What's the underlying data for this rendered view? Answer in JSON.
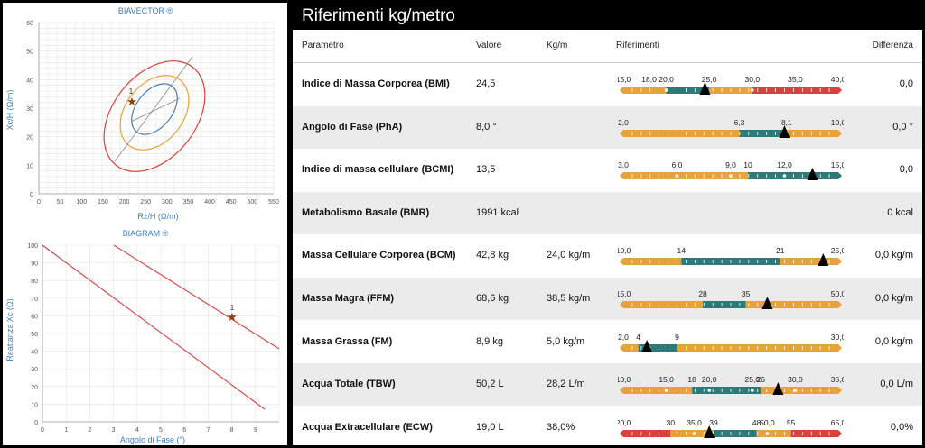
{
  "biavector": {
    "title": "BIAVECTOR ®",
    "xlabel": "Rz/H (Ω/m)",
    "ylabel": "Xc/H (Ω/m)",
    "xticks": [
      "0",
      "50",
      "100",
      "150",
      "200",
      "250",
      "300",
      "350",
      "400",
      "450",
      "500",
      "550"
    ],
    "yticks": [
      "0",
      "10",
      "20",
      "30",
      "40",
      "50",
      "60"
    ],
    "point_label": "1"
  },
  "biagram": {
    "title": "BIAGRAM ®",
    "xlabel": "Angolo di Fase (°)",
    "ylabel": "Reattanza Xc (Ω)",
    "xticks": [
      "0",
      "1",
      "2",
      "3",
      "4",
      "5",
      "6",
      "7",
      "8",
      "9"
    ],
    "yticks": [
      "0",
      "10",
      "20",
      "30",
      "40",
      "50",
      "60",
      "70",
      "80",
      "90",
      "100"
    ],
    "point_label": "1"
  },
  "panel": {
    "title": "Riferimenti kg/metro",
    "headers": {
      "param": "Parametro",
      "value": "Valore",
      "kgm": "Kg/m",
      "ref": "Riferimenti",
      "diff": "Differenza"
    }
  },
  "colors": {
    "orange": "#e8a23a",
    "teal": "#2e7a78",
    "red": "#d9413a",
    "marker": "#000000"
  },
  "rows": [
    {
      "name": "Indice di Massa Corporea (BMI)",
      "value": "24,5",
      "kgm": "",
      "diff": "0,0",
      "labels": [
        {
          "t": "15,0",
          "p": 0
        },
        {
          "t": "18,0",
          "p": 0.12
        },
        {
          "t": "20,0",
          "p": 0.2
        },
        {
          "t": "25,0",
          "p": 0.4
        },
        {
          "t": "30,0",
          "p": 0.6
        },
        {
          "t": "35,0",
          "p": 0.8
        },
        {
          "t": "40,0",
          "p": 1
        }
      ],
      "segments": [
        {
          "c": "orange",
          "a": 0,
          "b": 0.12
        },
        {
          "c": "orange",
          "a": 0.12,
          "b": 0.2
        },
        {
          "c": "teal",
          "a": 0.2,
          "b": 0.4
        },
        {
          "c": "orange",
          "a": 0.4,
          "b": 0.6
        },
        {
          "c": "red",
          "a": 0.6,
          "b": 1
        }
      ],
      "marker": 0.38,
      "dots": [
        0.2,
        0.6
      ]
    },
    {
      "name": "Angolo di Fase (PhA)",
      "value": "8,0  °",
      "kgm": "",
      "diff": "0,0  °",
      "labels": [
        {
          "t": "2,0",
          "p": 0
        },
        {
          "t": "6,3",
          "p": 0.54
        },
        {
          "t": "8,1",
          "p": 0.76
        },
        {
          "t": "10,0",
          "p": 1
        }
      ],
      "segments": [
        {
          "c": "orange",
          "a": 0,
          "b": 0.54
        },
        {
          "c": "teal",
          "a": 0.54,
          "b": 0.76
        },
        {
          "c": "orange",
          "a": 0.76,
          "b": 1
        }
      ],
      "marker": 0.75,
      "dots": []
    },
    {
      "name": "Indice di massa cellulare (BCMI)",
      "value": "13,5",
      "kgm": "",
      "diff": "0,0",
      "labels": [
        {
          "t": "3,0",
          "p": 0
        },
        {
          "t": "6,0",
          "p": 0.25
        },
        {
          "t": "9,0",
          "p": 0.5
        },
        {
          "t": "10",
          "p": 0.58
        },
        {
          "t": "12,0",
          "p": 0.75
        },
        {
          "t": "15,0",
          "p": 1
        }
      ],
      "segments": [
        {
          "c": "orange",
          "a": 0,
          "b": 0.58
        },
        {
          "c": "teal",
          "a": 0.58,
          "b": 1
        }
      ],
      "marker": 0.88,
      "dots": [
        0.25,
        0.5,
        0.75
      ]
    },
    {
      "name": "Metabolismo Basale (BMR)",
      "value": "1991 kcal",
      "kgm": "",
      "diff": "0 kcal",
      "labels": [],
      "segments": [],
      "marker": null,
      "dots": []
    },
    {
      "name": "Massa Cellulare Corporea (BCM)",
      "value": "42,8 kg",
      "kgm": "24,0 kg/m",
      "diff": "0,0 kg/m",
      "labels": [
        {
          "t": "10,0",
          "p": 0
        },
        {
          "t": "14",
          "p": 0.27
        },
        {
          "t": "21",
          "p": 0.73
        },
        {
          "t": "25,0",
          "p": 1
        }
      ],
      "segments": [
        {
          "c": "orange",
          "a": 0,
          "b": 0.27
        },
        {
          "c": "teal",
          "a": 0.27,
          "b": 0.73
        },
        {
          "c": "orange",
          "a": 0.73,
          "b": 1
        }
      ],
      "marker": 0.93,
      "dots": []
    },
    {
      "name": "Massa Magra (FFM)",
      "value": "68,6 kg",
      "kgm": "38,5 kg/m",
      "diff": "0,0 kg/m",
      "labels": [
        {
          "t": "15,0",
          "p": 0
        },
        {
          "t": "28",
          "p": 0.37
        },
        {
          "t": "35",
          "p": 0.57
        },
        {
          "t": "50,0",
          "p": 1
        }
      ],
      "segments": [
        {
          "c": "orange",
          "a": 0,
          "b": 0.37
        },
        {
          "c": "teal",
          "a": 0.37,
          "b": 0.57
        },
        {
          "c": "orange",
          "a": 0.57,
          "b": 1
        }
      ],
      "marker": 0.67,
      "dots": []
    },
    {
      "name": "Massa Grassa (FM)",
      "value": "8,9 kg",
      "kgm": "5,0 kg/m",
      "diff": "0,0 kg/m",
      "labels": [
        {
          "t": "2,0",
          "p": 0
        },
        {
          "t": "4",
          "p": 0.07
        },
        {
          "t": "9",
          "p": 0.25
        },
        {
          "t": "30,0",
          "p": 1
        }
      ],
      "segments": [
        {
          "c": "orange",
          "a": 0,
          "b": 0.07
        },
        {
          "c": "teal",
          "a": 0.07,
          "b": 0.25
        },
        {
          "c": "orange",
          "a": 0.25,
          "b": 1
        }
      ],
      "marker": 0.11,
      "dots": []
    },
    {
      "name": "Acqua Totale (TBW)",
      "value": "50,2 L",
      "kgm": "28,2 L/m",
      "diff": "0,0 L/m",
      "labels": [
        {
          "t": "10,0",
          "p": 0
        },
        {
          "t": "15,0",
          "p": 0.2
        },
        {
          "t": "18",
          "p": 0.32
        },
        {
          "t": "20,0",
          "p": 0.4
        },
        {
          "t": "25,0",
          "p": 0.6
        },
        {
          "t": "26",
          "p": 0.64
        },
        {
          "t": "30,0",
          "p": 0.8
        },
        {
          "t": "35,0",
          "p": 1
        }
      ],
      "segments": [
        {
          "c": "orange",
          "a": 0,
          "b": 0.32
        },
        {
          "c": "teal",
          "a": 0.32,
          "b": 0.64
        },
        {
          "c": "orange",
          "a": 0.64,
          "b": 1
        }
      ],
      "marker": 0.72,
      "dots": [
        0.2,
        0.4,
        0.6,
        0.8
      ]
    },
    {
      "name": "Acqua Extracellulare (ECW)",
      "value": "19,0 L",
      "kgm": "38,0%",
      "diff": "0,0%",
      "labels": [
        {
          "t": "20,0",
          "p": 0
        },
        {
          "t": "30",
          "p": 0.22
        },
        {
          "t": "35,0",
          "p": 0.33
        },
        {
          "t": "39",
          "p": 0.42
        },
        {
          "t": "48",
          "p": 0.62
        },
        {
          "t": "50,0",
          "p": 0.67
        },
        {
          "t": "55",
          "p": 0.78
        },
        {
          "t": "65,0",
          "p": 1
        }
      ],
      "segments": [
        {
          "c": "red",
          "a": 0,
          "b": 0.22
        },
        {
          "c": "orange",
          "a": 0.22,
          "b": 0.42
        },
        {
          "c": "teal",
          "a": 0.42,
          "b": 0.62
        },
        {
          "c": "orange",
          "a": 0.62,
          "b": 0.78
        },
        {
          "c": "red",
          "a": 0.78,
          "b": 1
        }
      ],
      "marker": 0.4,
      "dots": [
        0.33,
        0.67
      ]
    }
  ]
}
